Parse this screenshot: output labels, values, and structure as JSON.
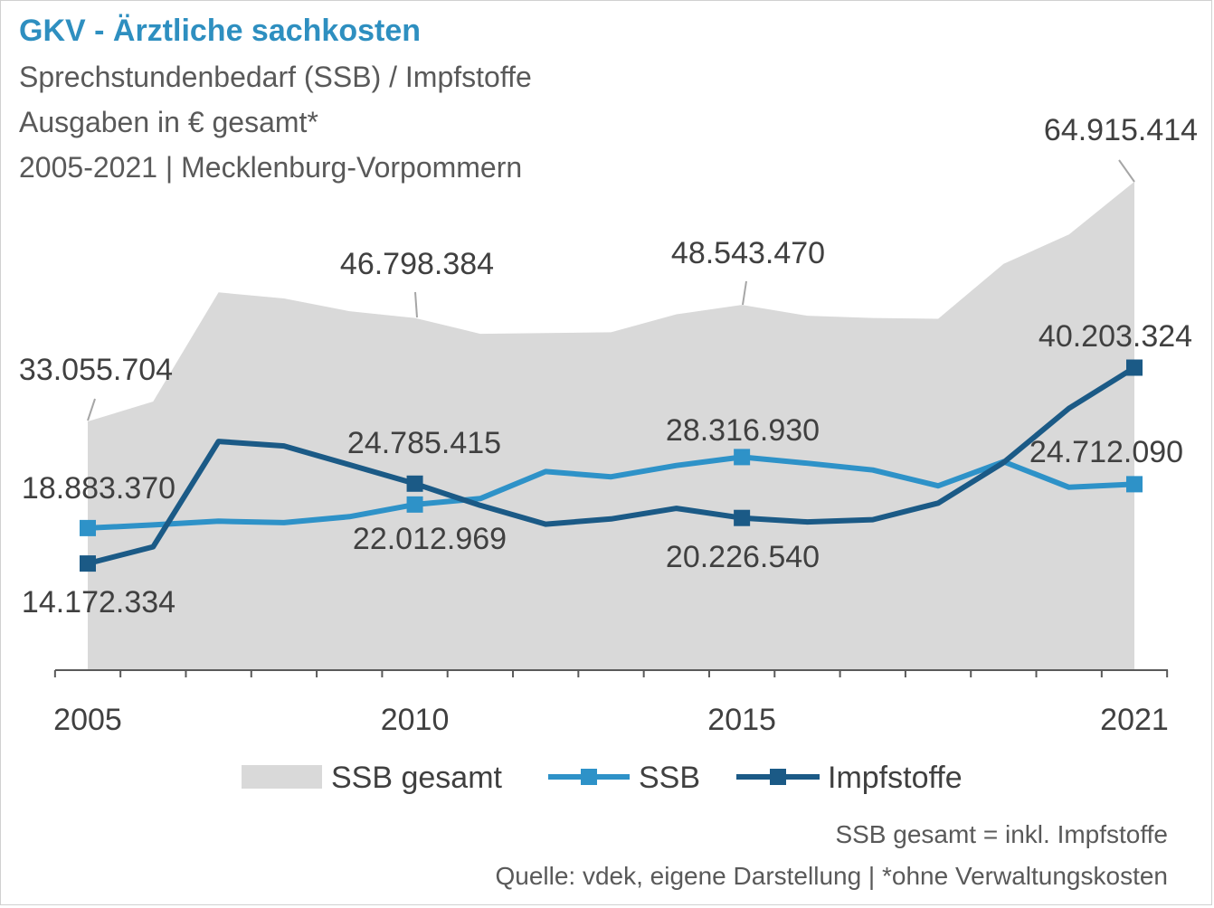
{
  "header": {
    "title": "GKV - Ärztliche sachkosten",
    "subtitle_lines": [
      "Sprechstundenbedarf (SSB) / Impfstoffe",
      "Ausgaben in € gesamt*",
      "2005-2021 | Mecklenburg-Vorpommern"
    ]
  },
  "footnotes": [
    "SSB gesamt = inkl. Impfstoffe",
    "Quelle: vdek, eigene Darstellung | *ohne Verwaltungskosten"
  ],
  "chart_data": {
    "type": "line",
    "x": [
      2005,
      2006,
      2007,
      2008,
      2009,
      2010,
      2011,
      2012,
      2013,
      2014,
      2015,
      2016,
      2017,
      2018,
      2019,
      2020,
      2021
    ],
    "x_tick_labels": [
      "2005",
      "2010",
      "2015",
      "2021"
    ],
    "ylim": [
      0,
      70000000
    ],
    "grid": false,
    "legend_position": "bottom",
    "series": [
      {
        "name": "SSB gesamt",
        "kind": "area",
        "color": "#d9d9d9",
        "values": [
          33055704,
          35700000,
          50200000,
          49400000,
          47700000,
          46798384,
          44700000,
          44800000,
          44900000,
          47300000,
          48543470,
          47100000,
          46800000,
          46700000,
          54000000,
          57900000,
          64915414
        ]
      },
      {
        "name": "SSB",
        "kind": "line",
        "color": "#2e92c8",
        "values": [
          18883370,
          19300000,
          19800000,
          19600000,
          20400000,
          22012969,
          22800000,
          26400000,
          25700000,
          27200000,
          28316930,
          27500000,
          26600000,
          24500000,
          27700000,
          24300000,
          24712090
        ]
      },
      {
        "name": "Impfstoffe",
        "kind": "line",
        "color": "#1b5a86",
        "values": [
          14172334,
          16400000,
          30400000,
          29800000,
          27300000,
          24785415,
          21900000,
          19400000,
          20100000,
          21500000,
          20226540,
          19700000,
          20000000,
          22200000,
          27600000,
          34800000,
          40203324
        ]
      }
    ],
    "data_labels": [
      {
        "series": "SSB gesamt",
        "x": 2005,
        "text": "33.055.704"
      },
      {
        "series": "SSB gesamt",
        "x": 2010,
        "text": "46.798.384"
      },
      {
        "series": "SSB gesamt",
        "x": 2015,
        "text": "48.543.470"
      },
      {
        "series": "SSB gesamt",
        "x": 2021,
        "text": "64.915.414"
      },
      {
        "series": "SSB",
        "x": 2005,
        "text": "18.883.370"
      },
      {
        "series": "SSB",
        "x": 2010,
        "text": "22.012.969"
      },
      {
        "series": "SSB",
        "x": 2015,
        "text": "28.316.930"
      },
      {
        "series": "SSB",
        "x": 2021,
        "text": "24.712.090"
      },
      {
        "series": "Impfstoffe",
        "x": 2005,
        "text": "14.172.334"
      },
      {
        "series": "Impfstoffe",
        "x": 2010,
        "text": "24.785.415"
      },
      {
        "series": "Impfstoffe",
        "x": 2015,
        "text": "20.226.540"
      },
      {
        "series": "Impfstoffe",
        "x": 2021,
        "text": "40.203.324"
      }
    ]
  }
}
